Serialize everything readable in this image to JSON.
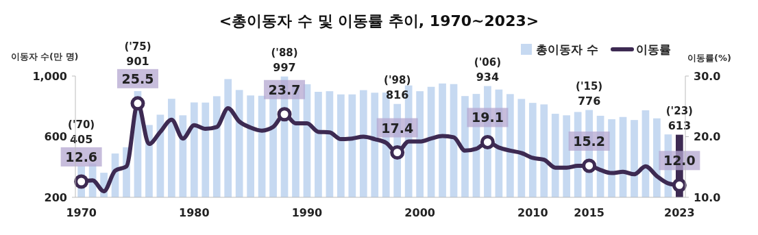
{
  "chart_data": {
    "type": "bar",
    "title": "<총이동자 수 및 이동률 추이, 1970~2023>",
    "ylabel": "이동자 수(만 명)",
    "y2label": "이동률(%)",
    "categories": [
      "1970",
      null,
      null,
      null,
      null,
      null,
      null,
      null,
      null,
      null,
      "1980",
      null,
      null,
      null,
      null,
      null,
      null,
      null,
      null,
      null,
      "1990",
      null,
      null,
      null,
      null,
      null,
      null,
      null,
      null,
      null,
      "2000",
      null,
      null,
      null,
      null,
      null,
      null,
      null,
      null,
      null,
      "2010",
      null,
      null,
      null,
      null,
      "2015",
      null,
      null,
      null,
      null,
      null,
      null,
      null,
      "2023"
    ],
    "series": [
      {
        "name": "총이동자 수",
        "color": "#c6d9f1",
        "colors": [
          "#c6d9f1",
          "#c6d9f1",
          "#c6d9f1",
          "#c6d9f1",
          "#c6d9f1",
          "#c6d9f1",
          "#c6d9f1",
          "#c6d9f1",
          "#c6d9f1",
          "#c6d9f1",
          "#c6d9f1",
          "#c6d9f1",
          "#c6d9f1",
          "#c6d9f1",
          "#c6d9f1",
          "#c6d9f1",
          "#c6d9f1",
          "#c6d9f1",
          "#c6d9f1",
          "#c6d9f1",
          "#c6d9f1",
          "#c6d9f1",
          "#c6d9f1",
          "#c6d9f1",
          "#c6d9f1",
          "#c6d9f1",
          "#c6d9f1",
          "#c6d9f1",
          "#c6d9f1",
          "#c6d9f1",
          "#c6d9f1",
          "#c6d9f1",
          "#c6d9f1",
          "#c6d9f1",
          "#c6d9f1",
          "#c6d9f1",
          "#c6d9f1",
          "#c6d9f1",
          "#c6d9f1",
          "#c6d9f1",
          "#c6d9f1",
          "#c6d9f1",
          "#c6d9f1",
          "#c6d9f1",
          "#c6d9f1",
          "#c6d9f1",
          "#c6d9f1",
          "#c6d9f1",
          "#c6d9f1",
          "#c6d9f1",
          "#c6d9f1",
          "#c6d9f1",
          "#c6d9f1",
          "#3d2a52"
        ],
        "values": [
          405,
          423,
          362,
          489,
          530,
          901,
          677,
          745,
          850,
          741,
          826,
          825,
          867,
          980,
          908,
          872,
          870,
          899,
          997,
          939,
          946,
          896,
          900,
          879,
          879,
          907,
          890,
          891,
          816,
          938,
          900,
          929,
          951,
          947,
          868,
          882,
          934,
          911,
          881,
          849,
          823,
          813,
          751,
          741,
          763,
          776,
          738,
          715,
          730,
          710,
          774,
          721,
          615,
          613
        ],
        "value_labels": [
          "405",
          null,
          null,
          null,
          null,
          "901",
          null,
          null,
          null,
          null,
          null,
          null,
          null,
          null,
          null,
          null,
          null,
          null,
          "997",
          null,
          null,
          null,
          null,
          null,
          null,
          null,
          null,
          null,
          "816",
          null,
          null,
          null,
          null,
          null,
          null,
          null,
          "934",
          null,
          null,
          null,
          null,
          null,
          null,
          null,
          null,
          "776",
          null,
          null,
          null,
          null,
          null,
          null,
          null,
          "613"
        ]
      },
      {
        "name": "이동률",
        "type": "line",
        "axis": "y2",
        "color": "#3d2a52",
        "values": [
          12.6,
          12.8,
          11.0,
          14.4,
          15.1,
          25.5,
          18.8,
          20.8,
          22.8,
          19.7,
          21.9,
          21.3,
          21.6,
          24.7,
          22.5,
          21.5,
          21.0,
          21.6,
          23.7,
          22.2,
          22.2,
          20.8,
          20.7,
          19.6,
          19.7,
          20.0,
          19.6,
          19.0,
          17.4,
          19.2,
          19.2,
          19.7,
          20.1,
          19.9,
          17.7,
          18.0,
          19.1,
          18.2,
          17.7,
          17.3,
          16.5,
          16.2,
          14.9,
          14.9,
          15.2,
          15.2,
          14.5,
          14.0,
          14.2,
          13.8,
          15.1,
          13.5,
          12.3,
          12.0
        ],
        "value_labels": [
          "12.6",
          null,
          null,
          null,
          null,
          "25.5",
          null,
          null,
          null,
          null,
          null,
          null,
          null,
          null,
          null,
          null,
          null,
          null,
          "23.7",
          null,
          null,
          null,
          null,
          null,
          null,
          null,
          null,
          null,
          "17.4",
          null,
          null,
          null,
          null,
          null,
          null,
          null,
          "19.1",
          null,
          null,
          null,
          null,
          null,
          null,
          null,
          null,
          "15.2",
          null,
          null,
          null,
          null,
          null,
          null,
          null,
          "12.0"
        ]
      }
    ],
    "annotations": [
      "('70)",
      "('75)",
      "('88)",
      "('98)",
      "('06)",
      "('15)",
      "('23)"
    ],
    "ylim": [
      200,
      1000
    ],
    "yticks": [
      200,
      600,
      {
        "value": 1000,
        "label": "1,000"
      }
    ],
    "y2lim": [
      10,
      30
    ],
    "y2ticks": [
      {
        "value": 10,
        "label": "10.0"
      },
      {
        "value": 20,
        "label": "20.0"
      },
      {
        "value": 30,
        "label": "30.0"
      }
    ],
    "legend": "top right",
    "grid": false
  }
}
